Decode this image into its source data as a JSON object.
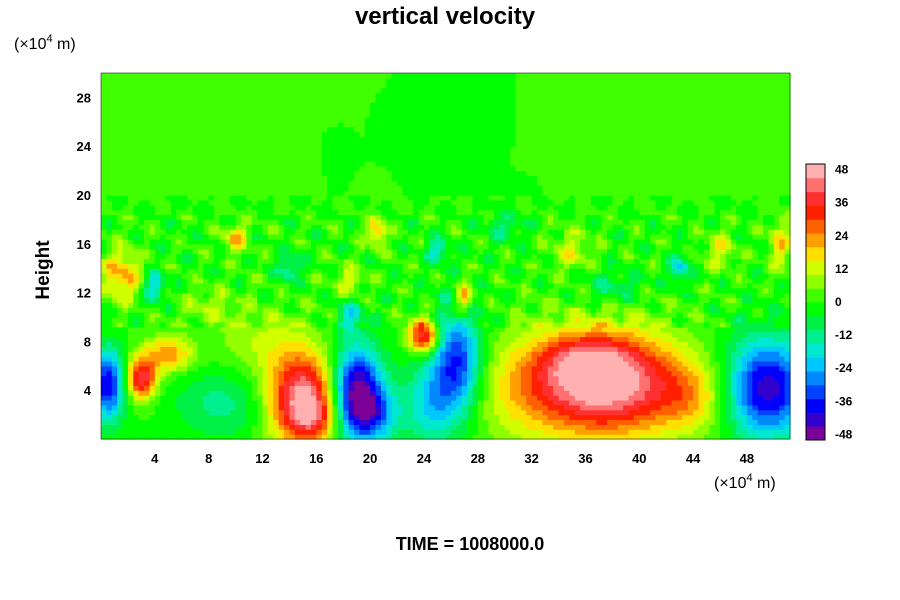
{
  "chart_data": {
    "type": "heatmap",
    "title": "vertical velocity",
    "xlabel": "",
    "ylabel": "Height",
    "x_unit_prefix": "(×10",
    "x_unit_exp": "4",
    "x_unit_suffix": " m)",
    "y_unit_prefix": "(×10",
    "y_unit_exp": "4",
    "y_unit_suffix": " m)",
    "xlim": [
      0,
      51.2
    ],
    "ylim": [
      0,
      30
    ],
    "x_ticks": [
      4,
      8,
      12,
      16,
      20,
      24,
      28,
      32,
      36,
      40,
      44,
      48
    ],
    "y_ticks": [
      4,
      8,
      12,
      16,
      20,
      24,
      28
    ],
    "colorbar": {
      "range": [
        -50,
        50
      ],
      "ticks": [
        48,
        36,
        24,
        12,
        0,
        -12,
        -24,
        -36,
        -48
      ],
      "colors": [
        "#7b0098",
        "#3300cc",
        "#0000ff",
        "#0044ff",
        "#0088ff",
        "#00c8ff",
        "#00e8d0",
        "#00f090",
        "#00f048",
        "#00ff00",
        "#40ff00",
        "#90ff00",
        "#d0ff00",
        "#ffe000",
        "#ffa000",
        "#ff6000",
        "#ff2000",
        "#ff3030",
        "#ff7070",
        "#ffb0b0"
      ]
    },
    "background_value": 0,
    "features": [
      {
        "x": 15.0,
        "y": 3.2,
        "value": 50,
        "sx": 1.8,
        "sy": 2.6
      },
      {
        "x": 16.0,
        "y": 1.8,
        "value": 12,
        "sx": 1.0,
        "sy": 1.0
      },
      {
        "x": 19.0,
        "y": 3.8,
        "value": -52,
        "sx": 1.3,
        "sy": 2.6
      },
      {
        "x": 20.5,
        "y": 2.0,
        "value": -20,
        "sx": 1.2,
        "sy": 1.5
      },
      {
        "x": 37.5,
        "y": 4.5,
        "value": 50,
        "sx": 4.0,
        "sy": 3.0
      },
      {
        "x": 36.0,
        "y": 6.5,
        "value": 16,
        "sx": 2.5,
        "sy": 1.5
      },
      {
        "x": 49.5,
        "y": 4.2,
        "value": -44,
        "sx": 2.2,
        "sy": 2.8
      },
      {
        "x": 0.5,
        "y": 4.5,
        "value": -40,
        "sx": 0.9,
        "sy": 2.0
      },
      {
        "x": 3.0,
        "y": 5.0,
        "value": 40,
        "sx": 0.8,
        "sy": 1.2
      },
      {
        "x": 5.0,
        "y": 7.0,
        "value": 24,
        "sx": 1.3,
        "sy": 1.0
      },
      {
        "x": 24.0,
        "y": 8.5,
        "value": 42,
        "sx": 0.8,
        "sy": 1.0
      },
      {
        "x": 26.5,
        "y": 6.5,
        "value": -36,
        "sx": 1.3,
        "sy": 3.0
      },
      {
        "x": 24.5,
        "y": 3.0,
        "value": -20,
        "sx": 1.5,
        "sy": 2.5
      },
      {
        "x": 12.0,
        "y": 8.0,
        "value": 10,
        "sx": 2.5,
        "sy": 2.0
      },
      {
        "x": 9.0,
        "y": 3.0,
        "value": -12,
        "sx": 2.5,
        "sy": 2.0
      },
      {
        "x": 31.0,
        "y": 4.0,
        "value": 10,
        "sx": 3.0,
        "sy": 3.0
      },
      {
        "x": 44.0,
        "y": 3.5,
        "value": 14,
        "sx": 2.0,
        "sy": 2.0
      },
      {
        "x": 1.5,
        "y": 13.5,
        "value": 22,
        "sx": 1.0,
        "sy": 1.5
      },
      {
        "x": 10.0,
        "y": 16.5,
        "value": 20,
        "sx": 0.6,
        "sy": 0.8
      },
      {
        "x": 20.5,
        "y": 17.0,
        "value": 22,
        "sx": 0.5,
        "sy": 0.8
      },
      {
        "x": 27.0,
        "y": 11.5,
        "value": 24,
        "sx": 0.5,
        "sy": 1.0
      },
      {
        "x": 18.5,
        "y": 13.0,
        "value": 14,
        "sx": 0.7,
        "sy": 0.8
      },
      {
        "x": 4.0,
        "y": 12.5,
        "value": -24,
        "sx": 0.5,
        "sy": 0.8
      },
      {
        "x": 14.0,
        "y": 14.0,
        "value": -16,
        "sx": 0.6,
        "sy": 0.8
      },
      {
        "x": 25.0,
        "y": 15.5,
        "value": -18,
        "sx": 0.6,
        "sy": 0.7
      },
      {
        "x": 43.0,
        "y": 14.0,
        "value": -22,
        "sx": 0.5,
        "sy": 0.8
      },
      {
        "x": 46.0,
        "y": 15.5,
        "value": 14,
        "sx": 0.8,
        "sy": 1.0
      },
      {
        "x": 35.0,
        "y": 15.5,
        "value": 12,
        "sx": 1.0,
        "sy": 1.2
      },
      {
        "x": 50.5,
        "y": 16.0,
        "value": 16,
        "sx": 0.6,
        "sy": 1.5
      },
      {
        "x": 18.5,
        "y": 10.0,
        "value": -18,
        "sx": 0.6,
        "sy": 0.9
      },
      {
        "x": 8.0,
        "y": 11.0,
        "value": 8,
        "sx": 1.5,
        "sy": 1.0
      },
      {
        "x": 38.0,
        "y": 12.5,
        "value": -10,
        "sx": 1.5,
        "sy": 1.0
      },
      {
        "x": 30.0,
        "y": 17.5,
        "value": -10,
        "sx": 1.0,
        "sy": 0.8
      }
    ]
  },
  "time_label": "TIME = 1008000.0"
}
